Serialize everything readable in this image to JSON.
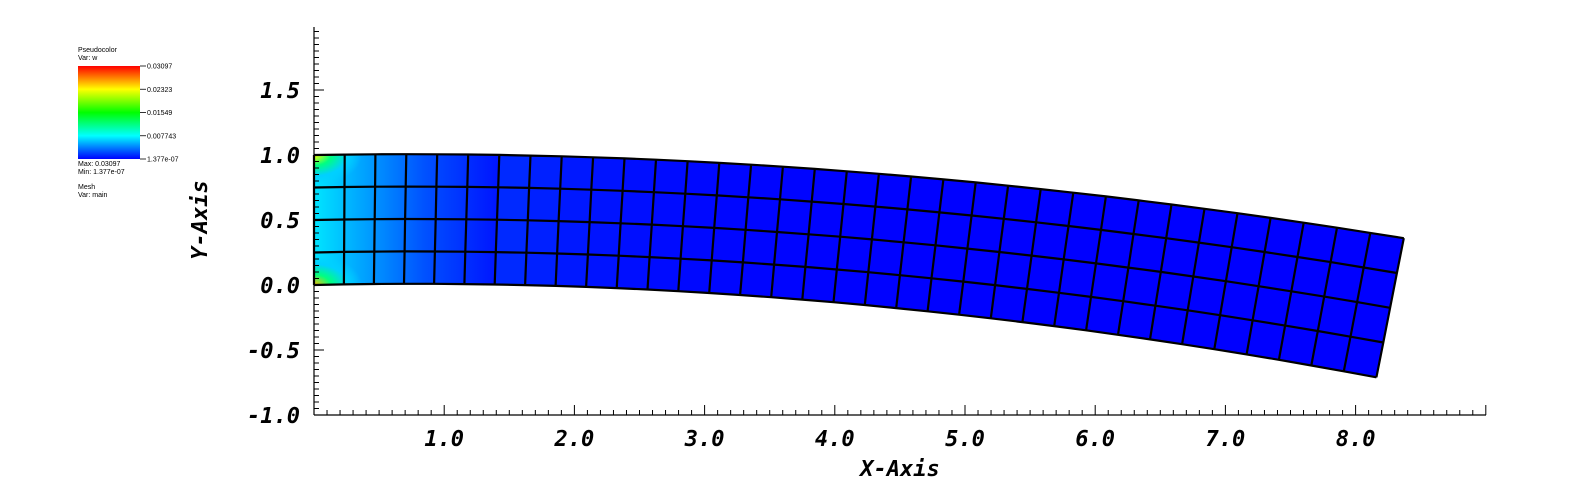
{
  "chart_data": {
    "type": "heatmap",
    "xlabel": "X-Axis",
    "ylabel": "Y-Axis",
    "xlim": [
      0.0,
      9.0
    ],
    "ylim": [
      -1.0,
      2.0
    ],
    "x_tick_labels": [
      "1.0",
      "2.0",
      "3.0",
      "4.0",
      "5.0",
      "6.0",
      "7.0",
      "8.0"
    ],
    "y_tick_labels": [
      "-1.0",
      "-0.5",
      "0.0",
      "0.5",
      "1.0",
      "1.5"
    ],
    "legend": {
      "pseudocolor_title": "Pseudocolor",
      "pseudocolor_var": "Var: w",
      "scale_labels": [
        "0.03097",
        "0.02323",
        "0.01549",
        "0.007743",
        "1.377e-07"
      ],
      "max_label": "Max: 0.03097",
      "min_label": "Min: 1.377e-07",
      "mesh_title": "Mesh",
      "mesh_var": "Var: main"
    },
    "mesh": {
      "columns": 34,
      "rows": 4,
      "bottom_left": [
        0.0,
        0.0
      ],
      "top_left": [
        0.0,
        1.0
      ],
      "bottom_right": [
        8.16,
        -0.71
      ],
      "top_right": [
        8.37,
        0.36
      ],
      "high_value_regions": [
        "left edge corners (x≈0.0–0.3)",
        "near-left band (x≈0.3–1.5)"
      ]
    }
  }
}
